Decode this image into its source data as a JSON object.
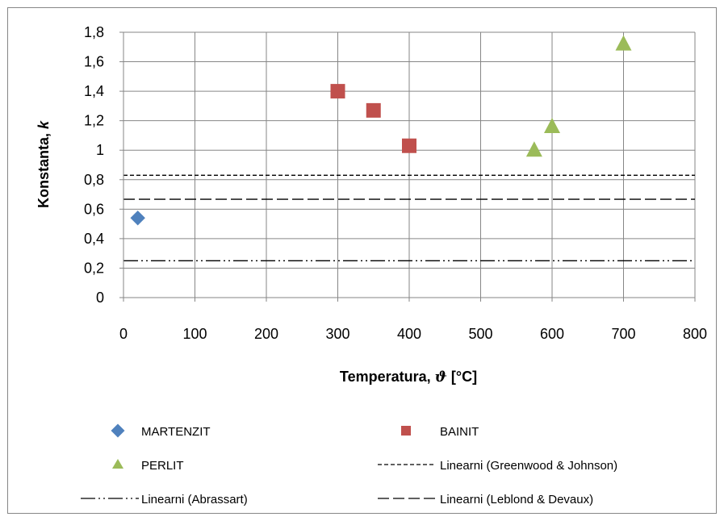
{
  "chart_data": {
    "type": "scatter",
    "title": "",
    "xlabel": {
      "prefix": "Temperatura, ",
      "symbol": "ϑ",
      "suffix": " [°C]"
    },
    "ylabel": {
      "prefix": "Konstanta, ",
      "symbol": "k"
    },
    "xlim": [
      0,
      800
    ],
    "ylim": [
      0,
      1.8
    ],
    "xticks": [
      0,
      100,
      200,
      300,
      400,
      500,
      600,
      700,
      800
    ],
    "xtick_labels": [
      "0",
      "100",
      "200",
      "300",
      "400",
      "500",
      "600",
      "700",
      "800"
    ],
    "yticks": [
      0,
      0.2,
      0.4,
      0.6,
      0.8,
      1,
      1.2,
      1.4,
      1.6,
      1.8
    ],
    "ytick_labels": [
      "0",
      "0,2",
      "0,4",
      "0,6",
      "0,8",
      "1",
      "1,2",
      "1,4",
      "1,6",
      "1,8"
    ],
    "grid": true,
    "legend_position": "bottom",
    "series": [
      {
        "name": "MARTENZIT",
        "marker": "diamond",
        "color": "#4F81BD",
        "x": [
          20
        ],
        "y": [
          0.54
        ]
      },
      {
        "name": "BAINIT",
        "marker": "square",
        "color": "#C0504D",
        "x": [
          300,
          350,
          400
        ],
        "y": [
          1.4,
          1.27,
          1.03
        ]
      },
      {
        "name": "PERLIT",
        "marker": "triangle",
        "color": "#9BBB59",
        "x": [
          575,
          600,
          700
        ],
        "y": [
          1.0,
          1.16,
          1.72
        ]
      }
    ],
    "reference_lines": [
      {
        "name": "Linearni (Greenwood & Johnson)",
        "y": 0.83,
        "dash": "short"
      },
      {
        "name": "Linearni (Abrassart)",
        "y": 0.25,
        "dash": "dashdotdot"
      },
      {
        "name": "Linearni (Leblond & Devaux)",
        "y": 0.667,
        "dash": "long"
      }
    ]
  }
}
